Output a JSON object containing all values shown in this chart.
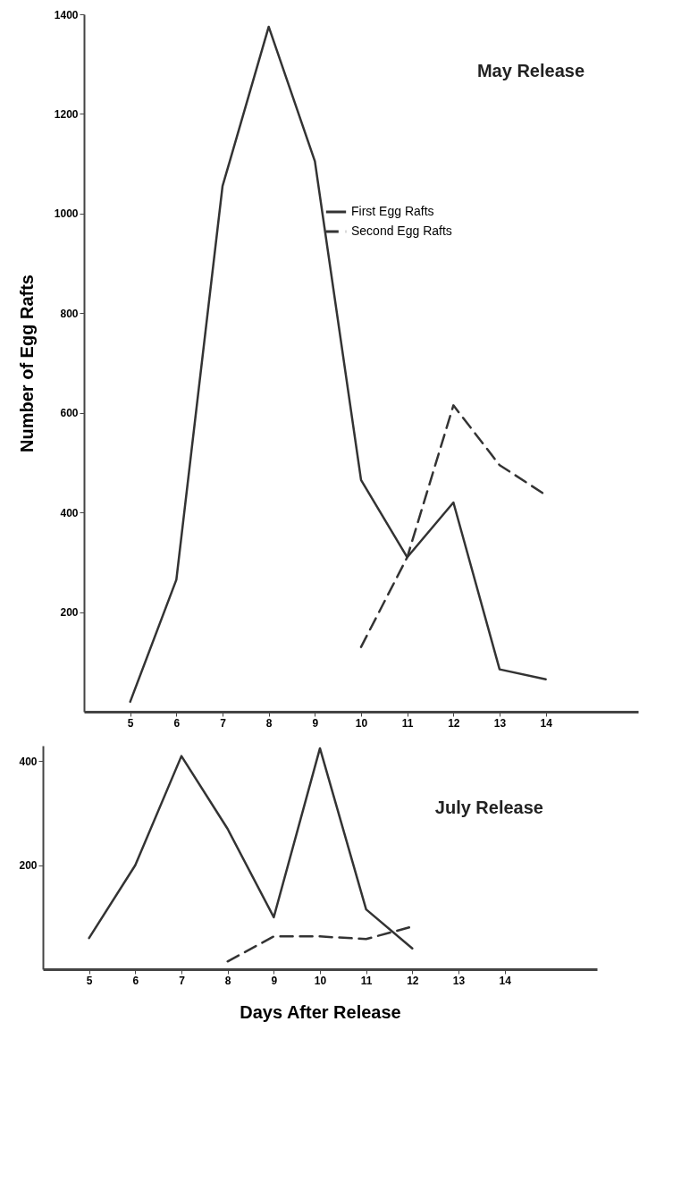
{
  "chart_data": [
    {
      "type": "line",
      "title": "May Release",
      "ylabel": "Number of Egg Rafts",
      "x": [
        5,
        6,
        7,
        8,
        9,
        10,
        11,
        12,
        13,
        14
      ],
      "series": [
        {
          "name": "First Egg Rafts",
          "color": "#333333",
          "line_style": "solid",
          "values": [
            20,
            265,
            1055,
            1375,
            1105,
            465,
            310,
            420,
            85,
            65
          ]
        },
        {
          "name": "Second Egg Rafts",
          "color": "#333333",
          "line_style": "dashed",
          "values": [
            null,
            null,
            null,
            null,
            null,
            130,
            310,
            615,
            495,
            435
          ]
        }
      ],
      "xlim": [
        4,
        16
      ],
      "xticks": [
        5,
        6,
        7,
        8,
        9,
        10,
        11,
        12,
        13,
        14
      ],
      "ylim": [
        0,
        1400
      ],
      "yticks": [
        200,
        400,
        600,
        800,
        1000,
        1200,
        1400
      ],
      "grid": false,
      "legend": "top right",
      "marker": "none"
    },
    {
      "type": "line",
      "title": "July Release",
      "xlabel": "Days After Release",
      "x": [
        5,
        6,
        7,
        8,
        9,
        10,
        11,
        12
      ],
      "series": [
        {
          "color": "#333333",
          "line_style": "solid",
          "values": [
            60,
            200,
            410,
            270,
            100,
            425,
            115,
            40
          ]
        },
        {
          "color": "#333333",
          "line_style": "dashed",
          "values": [
            null,
            null,
            null,
            15,
            63,
            63,
            58,
            82
          ]
        }
      ],
      "xlim": [
        4,
        16
      ],
      "xticks": [
        5,
        6,
        7,
        8,
        9,
        10,
        11,
        12,
        13,
        14
      ],
      "ylim": [
        0,
        430
      ],
      "yticks": [
        200,
        400
      ],
      "grid": false,
      "legend": false,
      "marker": "none"
    }
  ]
}
